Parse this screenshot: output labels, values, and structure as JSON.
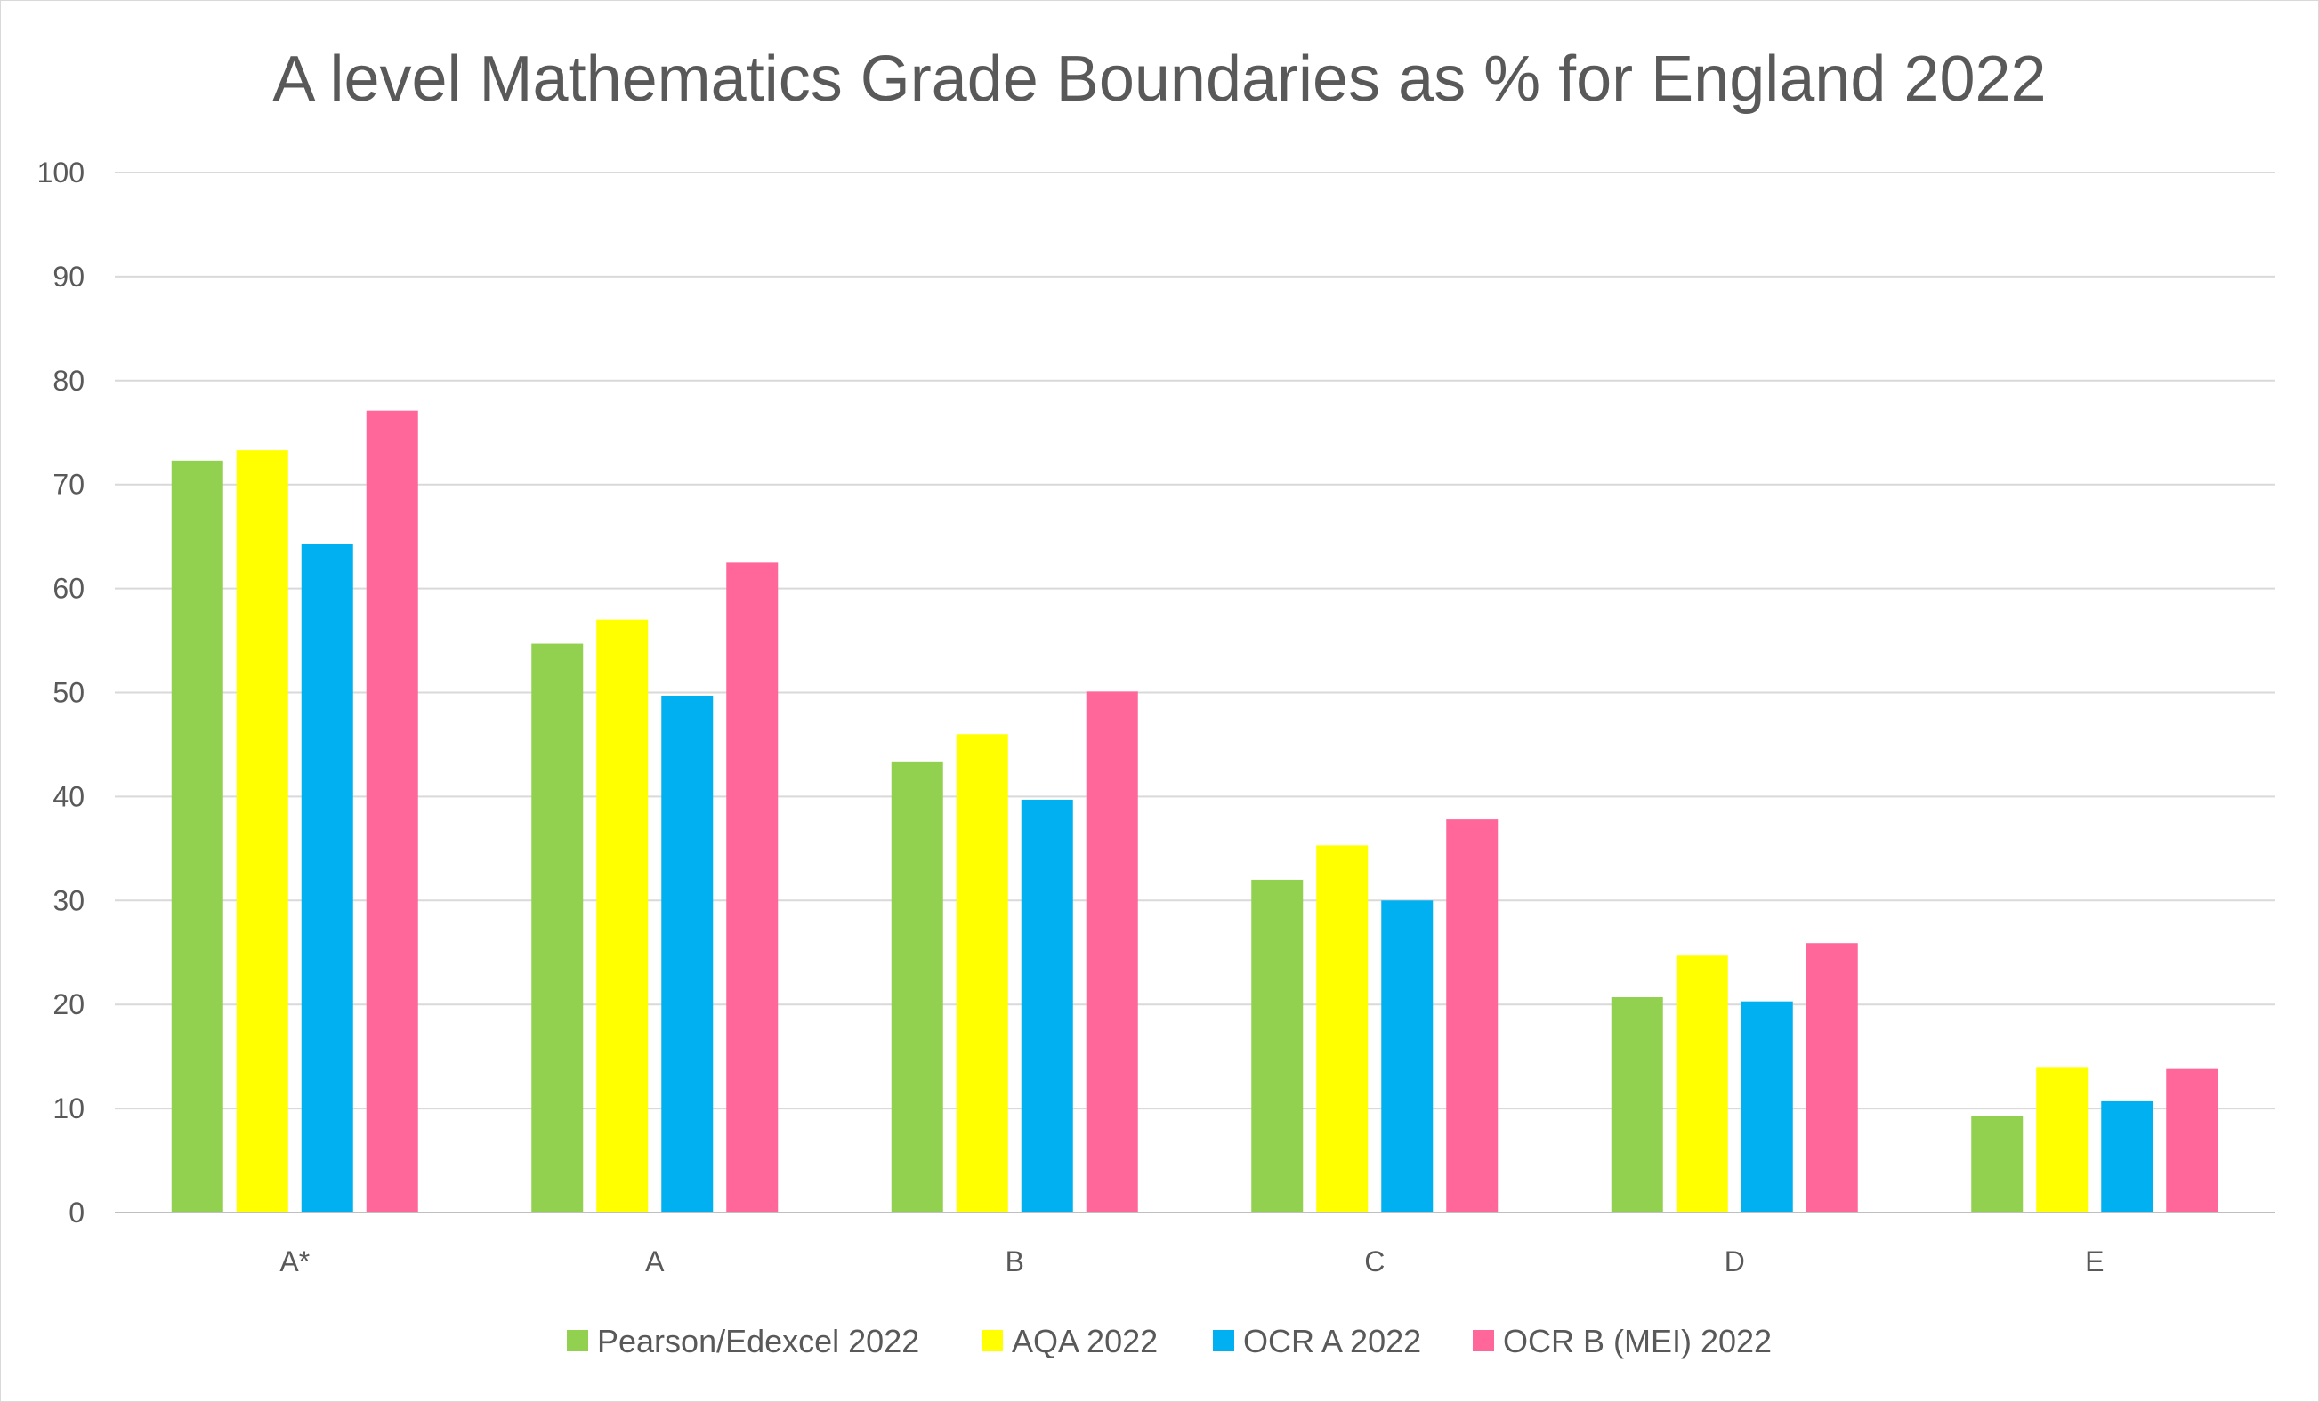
{
  "chart_data": {
    "type": "bar",
    "title": "A level Mathematics Grade Boundaries as % for England 2022",
    "xlabel": "",
    "ylabel": "",
    "ylim": [
      0,
      100
    ],
    "yticks": [
      "0",
      "10",
      "20",
      "30",
      "40",
      "50",
      "60",
      "70",
      "80",
      "90",
      "100"
    ],
    "grid": true,
    "legend_position": "bottom",
    "categories": [
      "A*",
      "A",
      "B",
      "C",
      "D",
      "E"
    ],
    "series": [
      {
        "name": "Pearson/Edexcel 2022",
        "color": "#92d050",
        "values": [
          72.3,
          54.7,
          43.3,
          32.0,
          20.7,
          9.3
        ]
      },
      {
        "name": "AQA 2022",
        "color": "#ffff00",
        "values": [
          73.3,
          57.0,
          46.0,
          35.3,
          24.7,
          14.0
        ]
      },
      {
        "name": "OCR A 2022",
        "color": "#00b0f0",
        "values": [
          64.3,
          49.7,
          39.7,
          30.0,
          20.3,
          10.7
        ]
      },
      {
        "name": "OCR B (MEI) 2022",
        "color": "#ff6699",
        "values": [
          77.1,
          62.5,
          50.1,
          37.8,
          25.9,
          13.8
        ]
      }
    ]
  }
}
